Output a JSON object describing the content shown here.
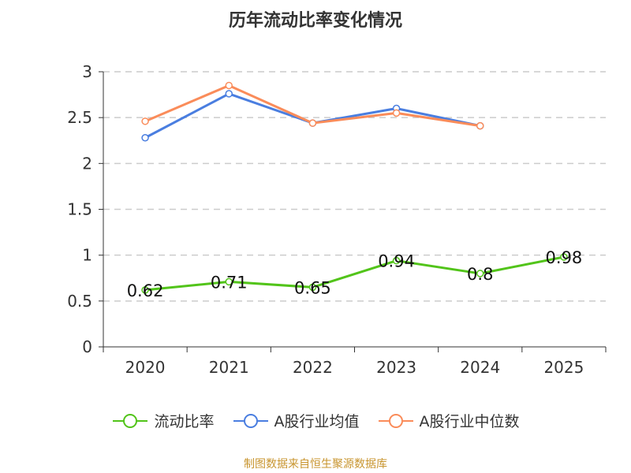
{
  "chart_data": {
    "type": "line",
    "title": "历年流动比率变化情况",
    "categories": [
      "2020",
      "2021",
      "2022",
      "2023",
      "2024",
      "2025"
    ],
    "ylim": [
      0,
      3
    ],
    "yticks": [
      "0",
      "0.5",
      "1",
      "1.5",
      "2",
      "2.5",
      "3"
    ],
    "ytick_values": [
      0,
      0.5,
      1,
      1.5,
      2,
      2.5,
      3
    ],
    "grid": true,
    "legend_position": "bottom",
    "series": [
      {
        "name": "流动比率",
        "color": "#52c41a",
        "values": [
          0.62,
          0.71,
          0.65,
          0.94,
          0.8,
          0.98
        ],
        "labels": [
          "0.62",
          "0.71",
          "0.65",
          "0.94",
          "0.8",
          "0.98"
        ]
      },
      {
        "name": "A股行业均值",
        "color": "#4a7ee0",
        "values": [
          2.28,
          2.76,
          2.44,
          2.6,
          2.41,
          null
        ]
      },
      {
        "name": "A股行业中位数",
        "color": "#fa8c5a",
        "values": [
          2.46,
          2.85,
          2.44,
          2.55,
          2.41,
          null
        ]
      }
    ]
  },
  "source": "制图数据来自恒生聚源数据库"
}
